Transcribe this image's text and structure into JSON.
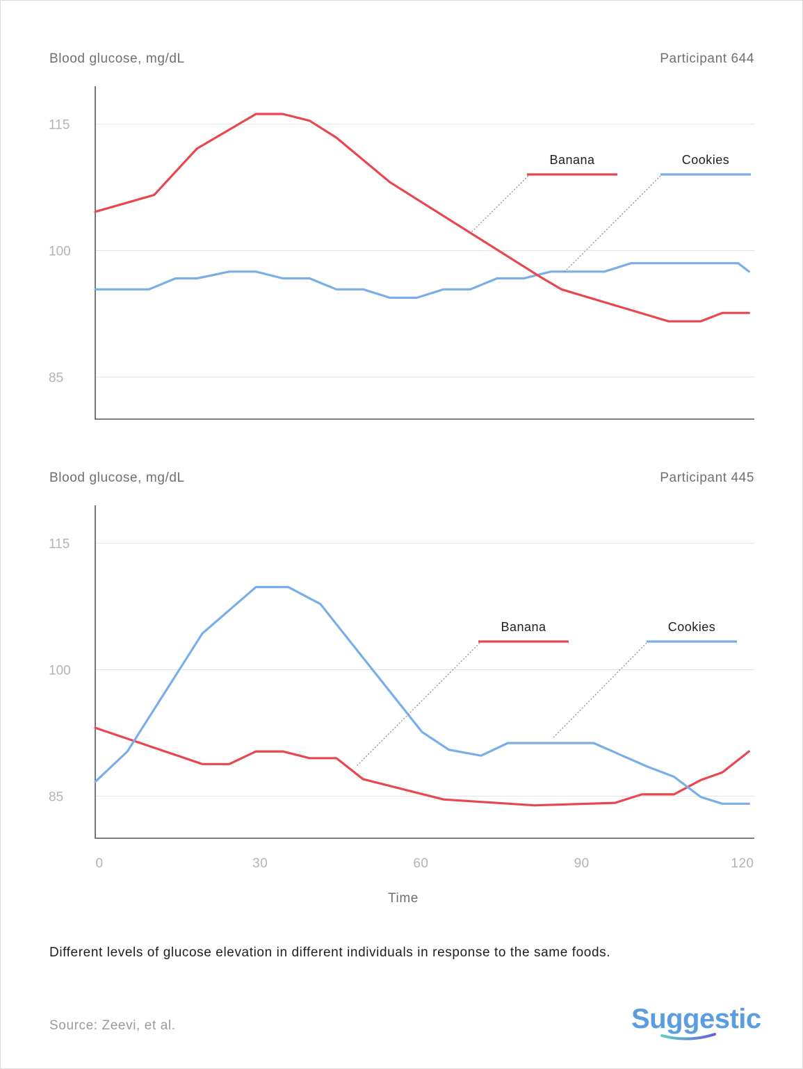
{
  "colors": {
    "banana": "#e8474f",
    "cookies": "#7aaee8",
    "axis": "#555555",
    "grid": "#e2e2e2",
    "leader": "#888888"
  },
  "y_axis_label": "Blood glucose, mg/dL",
  "x_axis_label": "Time",
  "caption": "Different levels of glucose elevation in different individuals in response to the same foods.",
  "source": "Source: Zeevi, et al.",
  "logo_text": "Suggestic",
  "chart_data": [
    {
      "type": "line",
      "title": "Participant 644",
      "ylabel": "Blood glucose, mg/dL",
      "xlabel": "",
      "x_ticks": [],
      "y_ticks": [
        85,
        100,
        115
      ],
      "xlim": [
        0,
        123
      ],
      "ylim": [
        80,
        119.5
      ],
      "grid": true,
      "legend": "inline-right",
      "series": [
        {
          "name": "Banana",
          "color": "#e8474f",
          "x": [
            0,
            11,
            19,
            30,
            35,
            40,
            45,
            55,
            83,
            87,
            107,
            113,
            117,
            122
          ],
          "y": [
            104.6,
            106.6,
            112.1,
            116.2,
            116.2,
            115.4,
            113.4,
            108.1,
            96.9,
            95.4,
            91.6,
            91.6,
            92.6,
            92.6
          ]
        },
        {
          "name": "Cookies",
          "color": "#7aaee8",
          "x": [
            0,
            10,
            15,
            19,
            25,
            30,
            35,
            40,
            45,
            50,
            55,
            60,
            65,
            70,
            75,
            80,
            85,
            90,
            95,
            100,
            105,
            110,
            115,
            120,
            122
          ],
          "y": [
            95.4,
            95.4,
            96.7,
            96.7,
            97.5,
            97.5,
            96.7,
            96.7,
            95.4,
            95.4,
            94.4,
            94.4,
            95.4,
            95.4,
            96.7,
            96.7,
            97.5,
            97.5,
            97.5,
            98.5,
            98.5,
            98.5,
            98.5,
            98.5,
            97.5
          ]
        }
      ]
    },
    {
      "type": "line",
      "title": "Participant 445",
      "ylabel": "Blood glucose, mg/dL",
      "xlabel": "Time",
      "x_ticks": [
        0,
        30,
        60,
        90,
        120
      ],
      "y_ticks": [
        85,
        100,
        115
      ],
      "xlim": [
        0,
        123
      ],
      "ylim": [
        80,
        119.5
      ],
      "grid": true,
      "legend": "inline-right",
      "series": [
        {
          "name": "Banana",
          "color": "#e8474f",
          "x": [
            0,
            20,
            25,
            30,
            35,
            40,
            45,
            50,
            65,
            82,
            97,
            102,
            108,
            113,
            117,
            122
          ],
          "y": [
            93.1,
            88.8,
            88.8,
            90.3,
            90.3,
            89.5,
            89.5,
            87.0,
            84.6,
            83.9,
            84.2,
            85.2,
            85.2,
            86.9,
            87.8,
            90.3
          ]
        },
        {
          "name": "Cookies",
          "color": "#7aaee8",
          "x": [
            0,
            6,
            20,
            30,
            36,
            42,
            61,
            66,
            72,
            77,
            93,
            103,
            108,
            113,
            117,
            122
          ],
          "y": [
            86.7,
            90.3,
            104.3,
            109.8,
            109.8,
            107.8,
            92.6,
            90.5,
            89.8,
            91.3,
            91.3,
            88.5,
            87.3,
            84.9,
            84.1,
            84.1
          ]
        }
      ]
    }
  ]
}
